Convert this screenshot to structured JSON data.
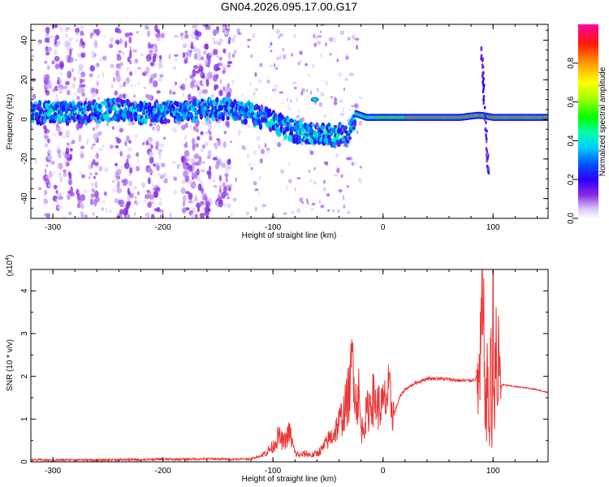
{
  "title": "GN04.2026.095.17.00.G17",
  "chart_data": [
    {
      "type": "heatmap",
      "xlabel": "Height of straight line (km)",
      "ylabel": "Frequency (Hz)",
      "xlim": [
        -320,
        150
      ],
      "ylim": [
        -50,
        48
      ],
      "x_ticks": [
        "-300",
        "-200",
        "-100",
        "0",
        "100"
      ],
      "y_ticks": [
        "-40",
        "-20",
        "0",
        "20",
        "40"
      ],
      "colorbar": {
        "label": "Normalized spectral amplitude",
        "range": [
          0,
          1
        ],
        "ticks": [
          "0.0",
          "0.2",
          "0.4",
          "0.6",
          "0.8"
        ]
      },
      "ridge": [
        [
          -320,
          3
        ],
        [
          -300,
          4
        ],
        [
          -280,
          3
        ],
        [
          -260,
          4
        ],
        [
          -240,
          5
        ],
        [
          -220,
          3
        ],
        [
          -200,
          4
        ],
        [
          -180,
          4
        ],
        [
          -160,
          5
        ],
        [
          -140,
          5
        ],
        [
          -130,
          4
        ],
        [
          -120,
          3
        ],
        [
          -110,
          1
        ],
        [
          -100,
          -1
        ],
        [
          -90,
          -4
        ],
        [
          -80,
          -6
        ],
        [
          -70,
          -7
        ],
        [
          -60,
          -8
        ],
        [
          -50,
          -8
        ],
        [
          -40,
          -8
        ],
        [
          -30,
          -7
        ],
        [
          -25,
          3
        ],
        [
          -15,
          1
        ],
        [
          -5,
          1
        ],
        [
          10,
          1
        ],
        [
          30,
          1
        ],
        [
          50,
          1
        ],
        [
          70,
          1
        ],
        [
          85,
          2
        ],
        [
          90,
          2
        ],
        [
          100,
          1
        ],
        [
          120,
          1
        ],
        [
          150,
          1
        ]
      ]
    },
    {
      "type": "line",
      "xlabel": "Height of straight line (km)",
      "ylabel": "SNR (10 * v/v)",
      "y_multiplier": "(x10",
      "y_multiplier_exp": "4",
      "y_multiplier_close": ")",
      "xlim": [
        -320,
        150
      ],
      "ylim": [
        0,
        4.5
      ],
      "x_ticks": [
        "-300",
        "-200",
        "-100",
        "0",
        "100"
      ],
      "y_ticks": [
        "0",
        "1",
        "2",
        "3",
        "4"
      ],
      "series": [
        {
          "color": "#ee3333",
          "x": [
            -320,
            -300,
            -280,
            -260,
            -240,
            -220,
            -200,
            -180,
            -160,
            -140,
            -120,
            -110,
            -100,
            -95,
            -90,
            -85,
            -80,
            -75,
            -70,
            -65,
            -60,
            -55,
            -50,
            -45,
            -40,
            -35,
            -30,
            -27,
            -25,
            -22,
            -20,
            -15,
            -10,
            -5,
            0,
            5,
            10,
            15,
            20,
            30,
            40,
            50,
            60,
            70,
            80,
            85,
            88,
            90,
            92,
            94,
            95,
            96,
            97,
            98,
            99,
            100,
            101,
            102,
            103,
            104,
            105,
            106,
            108,
            110,
            115,
            120,
            130,
            140,
            150
          ],
          "y": [
            0.05,
            0.04,
            0.05,
            0.04,
            0.05,
            0.05,
            0.06,
            0.06,
            0.07,
            0.06,
            0.07,
            0.15,
            0.35,
            0.6,
            0.45,
            0.7,
            0.2,
            0.15,
            0.2,
            0.15,
            0.2,
            0.3,
            0.5,
            0.65,
            0.9,
            1.2,
            1.7,
            2.7,
            1.4,
            1.6,
            0.7,
            1.1,
            1.5,
            1.3,
            1.3,
            1.6,
            1.1,
            1.5,
            1.7,
            1.85,
            1.95,
            1.95,
            1.93,
            1.9,
            1.9,
            1.95,
            1.85,
            3.5,
            2.5,
            0.8,
            2.3,
            1.2,
            0.3,
            3.9,
            0.1,
            4.5,
            0.7,
            3.6,
            2.0,
            1.2,
            2.5,
            1.9,
            1.8,
            1.8,
            1.78,
            1.76,
            1.73,
            1.69,
            1.62
          ]
        }
      ]
    }
  ]
}
